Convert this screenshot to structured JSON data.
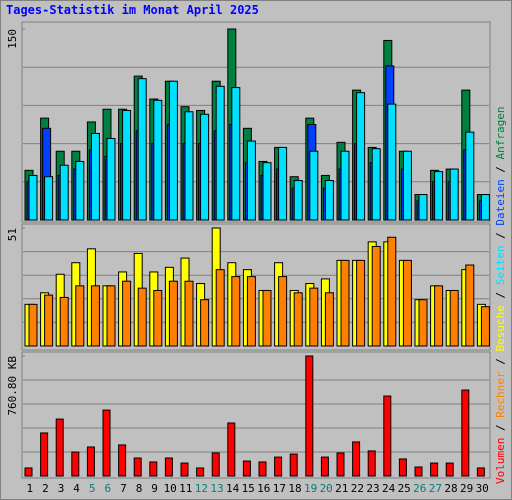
{
  "chart_data": [
    {
      "type": "bar",
      "title": "Tages-Statistik im Monat April 2025",
      "ylim": [
        0,
        150
      ],
      "yticks": [
        150
      ],
      "series": [
        {
          "name": "Anfragen",
          "color": "#008040",
          "values": [
            39,
            80,
            54,
            54,
            77,
            87,
            87,
            113,
            95,
            109,
            89,
            86,
            109,
            150,
            72,
            46,
            57,
            34,
            80,
            35,
            61,
            102,
            57,
            141,
            54,
            20,
            39,
            40,
            102,
            20
          ]
        },
        {
          "name": "Dateien",
          "color": "#0040ff",
          "values": [
            30,
            72,
            35,
            40,
            55,
            50,
            60,
            70,
            60,
            75,
            60,
            60,
            70,
            75,
            45,
            35,
            40,
            25,
            75,
            25,
            40,
            60,
            45,
            121,
            40,
            15,
            30,
            30,
            55,
            15
          ]
        },
        {
          "name": "Seiten",
          "color": "#00e0ff",
          "values": [
            35,
            34,
            43,
            46,
            68,
            64,
            86,
            111,
            94,
            109,
            85,
            83,
            105,
            104,
            62,
            45,
            57,
            31,
            54,
            31,
            54,
            100,
            56,
            91,
            54,
            20,
            38,
            40,
            69,
            20
          ]
        }
      ]
    },
    {
      "type": "bar",
      "ylim": [
        0,
        51
      ],
      "yticks": [
        51
      ],
      "series": [
        {
          "name": "Besuche",
          "color": "#ffff00",
          "values": [
            18,
            23,
            31,
            36,
            42,
            26,
            32,
            40,
            32,
            34,
            38,
            27,
            51,
            36,
            33,
            24,
            36,
            24,
            27,
            29,
            37,
            37,
            45,
            45,
            37,
            20,
            26,
            24,
            33,
            18
          ]
        },
        {
          "name": "Rechner",
          "color": "#ff8000",
          "values": [
            18,
            22,
            21,
            26,
            26,
            26,
            28,
            25,
            24,
            28,
            28,
            20,
            33,
            30,
            30,
            24,
            30,
            23,
            25,
            23,
            37,
            37,
            43,
            47,
            37,
            20,
            26,
            24,
            35,
            17
          ]
        }
      ]
    },
    {
      "type": "bar",
      "ylim": [
        0,
        760.8
      ],
      "yticks": [
        {
          "value": 760.8,
          "label": "760.80 KB"
        }
      ],
      "series": [
        {
          "name": "Volumen",
          "color": "#ff0000",
          "values": [
            51,
            273,
            361,
            152,
            184,
            418,
            197,
            114,
            89,
            114,
            82,
            51,
            146,
            336,
            95,
            89,
            120,
            139,
            760.8,
            120,
            146,
            216,
            159,
            507,
            108,
            57,
            82,
            82,
            545,
            51
          ]
        }
      ],
      "categories": [
        "1",
        "2",
        "3",
        "4",
        "5",
        "6",
        "7",
        "8",
        "9",
        "10",
        "11",
        "12",
        "13",
        "14",
        "15",
        "16",
        "17",
        "18",
        "19",
        "20",
        "21",
        "22",
        "23",
        "24",
        "25",
        "26",
        "27",
        "28",
        "29",
        "30"
      ],
      "category_colors": [
        "#000000",
        "#000000",
        "#000000",
        "#000000",
        "#008080",
        "#008080",
        "#000000",
        "#000000",
        "#000000",
        "#000000",
        "#000000",
        "#008080",
        "#008080",
        "#000000",
        "#000000",
        "#000000",
        "#000000",
        "#000000",
        "#008080",
        "#008080",
        "#000000",
        "#000000",
        "#000000",
        "#000000",
        "#000000",
        "#008080",
        "#008080",
        "#000000",
        "#000000",
        "#000000"
      ],
      "legend_separator": " / "
    }
  ]
}
